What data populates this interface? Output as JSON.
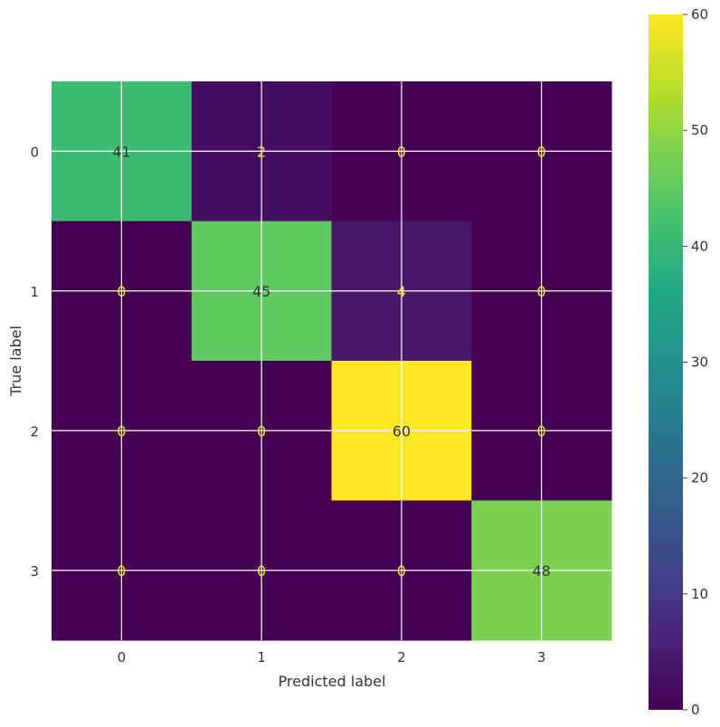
{
  "chart_data": {
    "type": "heatmap",
    "x_categories": [
      "0",
      "1",
      "2",
      "3"
    ],
    "y_categories": [
      "0",
      "1",
      "2",
      "3"
    ],
    "values": [
      [
        41,
        2,
        0,
        0
      ],
      [
        0,
        45,
        4,
        0
      ],
      [
        0,
        0,
        60,
        0
      ],
      [
        0,
        0,
        0,
        48
      ]
    ],
    "xlabel": "Predicted label",
    "ylabel": "True label",
    "colormap": "viridis",
    "colorbar": {
      "range": [
        0,
        60
      ],
      "ticks": [
        0,
        10,
        20,
        30,
        40,
        50,
        60
      ]
    },
    "grid": true
  }
}
